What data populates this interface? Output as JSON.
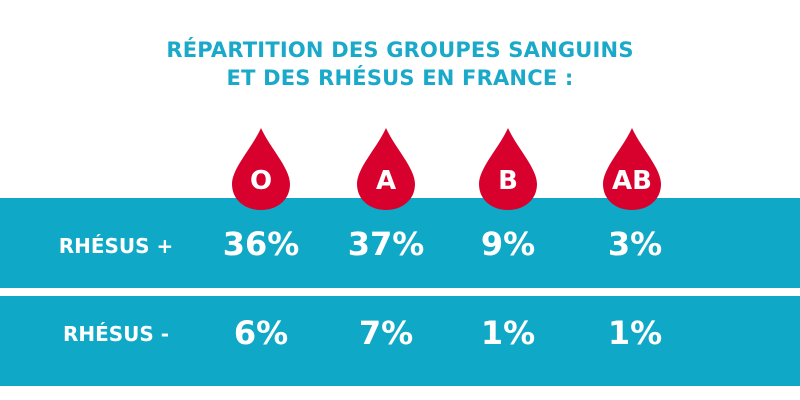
{
  "title": {
    "line1": "RÉPARTITION DES GROUPES SANGUINS",
    "line2": "ET DES RHÉSUS EN FRANCE :"
  },
  "colors": {
    "title": "#1aa9c9",
    "band": "#0fa8c7",
    "drop": "#d8002c",
    "text_on_band": "#ffffff"
  },
  "groups": [
    {
      "label": "O"
    },
    {
      "label": "A"
    },
    {
      "label": "B"
    },
    {
      "label": "AB"
    }
  ],
  "rows": [
    {
      "label": "RHÉSUS +",
      "values": [
        "36%",
        "37%",
        "9%",
        "3%"
      ]
    },
    {
      "label": "RHÉSUS -",
      "values": [
        "6%",
        "7%",
        "1%",
        "1%"
      ]
    }
  ],
  "icons": {
    "drop": "blood-drop-icon"
  }
}
